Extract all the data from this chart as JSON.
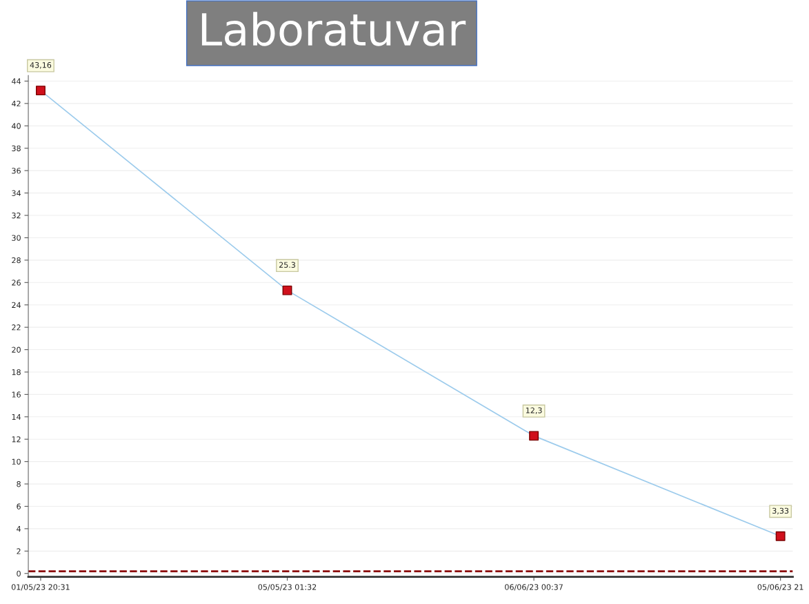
{
  "chart_data": {
    "type": "line",
    "title": "Laboratuvar",
    "categories": [
      "01/05/23 20:31",
      "05/05/23 01:32",
      "06/06/23 00:37",
      "05/06/23 21"
    ],
    "series": [
      {
        "color": "#9ccbec",
        "values": [
          43.16,
          25.3,
          12.3,
          3.33
        ],
        "value_labels": [
          "43,16",
          "25.3",
          "12,3",
          "3,33"
        ],
        "colors": [
          "#d0101c",
          "#d0101c",
          "#d0101c",
          "#d0101c"
        ]
      }
    ],
    "marker": "square",
    "ylim": [
      -0.3,
      44.5
    ],
    "yticks": [
      0,
      2,
      4,
      6,
      8,
      10,
      12,
      14,
      16,
      18,
      20,
      22,
      24,
      26,
      28,
      30,
      32,
      34,
      36,
      38,
      40,
      42,
      44
    ],
    "grid": "y",
    "legend": false,
    "ref_lines": [
      {
        "axis": "y",
        "value": 0.2,
        "color": "#8b0000",
        "line_style": "dashed"
      }
    ]
  }
}
